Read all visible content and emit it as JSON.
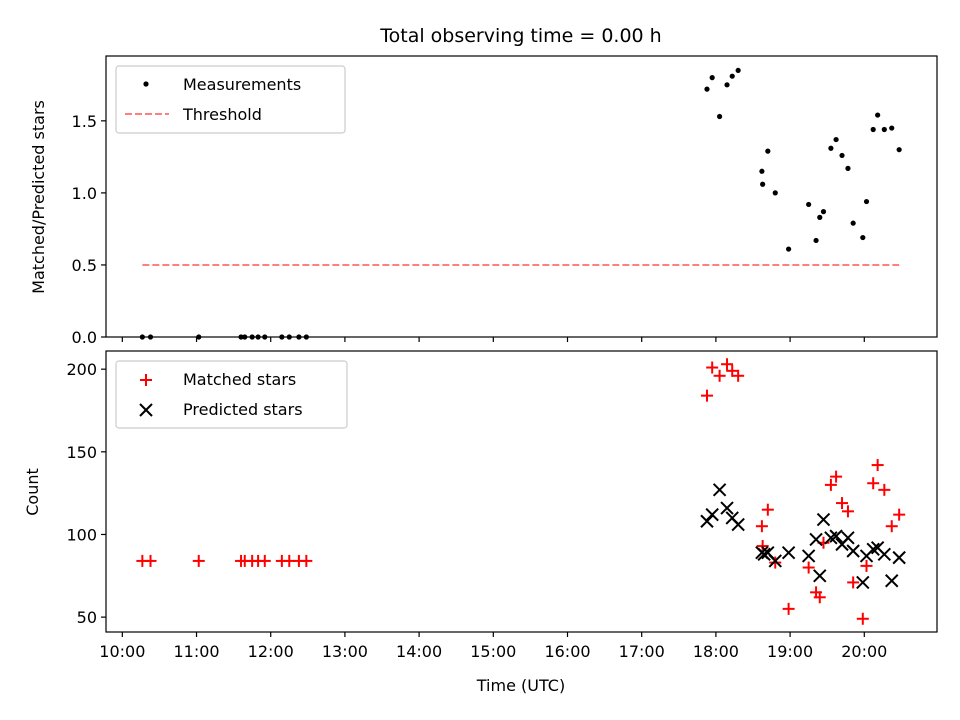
{
  "chart_data": {
    "title": "Total observing time = 0.00 h",
    "xlabel": "Time (UTC)",
    "x_ticks": [
      "10:00",
      "11:00",
      "12:00",
      "13:00",
      "14:00",
      "15:00",
      "16:00",
      "17:00",
      "18:00",
      "19:00",
      "20:00"
    ],
    "x_tick_hours": [
      10,
      11,
      12,
      13,
      14,
      15,
      16,
      17,
      18,
      19,
      20
    ],
    "xlim": [
      9.78,
      20.98
    ],
    "panels": [
      {
        "type": "scatter",
        "ylabel": "Matched/Predicted stars",
        "ylim": [
          0,
          1.95
        ],
        "y_ticks": [
          0.0,
          0.5,
          1.0,
          1.5
        ],
        "y_tick_labels": [
          "0.0",
          "0.5",
          "1.0",
          "1.5"
        ],
        "legend": {
          "placement": "upper-left",
          "entries": [
            "Measurements",
            "Threshold"
          ]
        },
        "series": [
          {
            "name": "Measurements",
            "marker": "dot",
            "color": "#000000",
            "x": [
              10.27,
              10.38,
              11.03,
              11.6,
              11.65,
              11.75,
              11.83,
              11.92,
              12.15,
              12.25,
              12.38,
              12.48,
              17.88,
              17.95,
              18.05,
              18.15,
              18.22,
              18.3,
              18.62,
              18.63,
              18.7,
              18.8,
              18.98,
              19.25,
              19.35,
              19.4,
              19.45,
              19.55,
              19.62,
              19.7,
              19.78,
              19.85,
              19.98,
              20.03,
              20.12,
              20.18,
              20.27,
              20.37,
              20.47
            ],
            "y": [
              0,
              0,
              0,
              0,
              0,
              0,
              0,
              0,
              0,
              0,
              0,
              0,
              1.72,
              1.8,
              1.53,
              1.75,
              1.81,
              1.85,
              1.15,
              1.06,
              1.29,
              1.0,
              0.61,
              0.92,
              0.67,
              0.83,
              0.87,
              1.31,
              1.37,
              1.26,
              1.17,
              0.79,
              0.69,
              0.94,
              1.44,
              1.54,
              1.44,
              1.45,
              1.3
            ]
          },
          {
            "name": "Threshold",
            "marker": "dashed-line",
            "color": "#ff7f7f",
            "x": [
              10.27,
              20.47
            ],
            "y": [
              0.5,
              0.5
            ]
          }
        ]
      },
      {
        "type": "scatter",
        "ylabel": "Count",
        "ylim": [
          41,
          211
        ],
        "y_ticks": [
          50,
          100,
          150,
          200
        ],
        "y_tick_labels": [
          "50",
          "100",
          "150",
          "200"
        ],
        "legend": {
          "placement": "upper-left",
          "entries": [
            "Matched stars",
            "Predicted stars"
          ]
        },
        "series": [
          {
            "name": "Matched stars",
            "marker": "plus",
            "color": "#ff0000",
            "x": [
              10.27,
              10.38,
              11.03,
              11.6,
              11.65,
              11.75,
              11.83,
              11.92,
              12.15,
              12.25,
              12.38,
              12.48,
              17.88,
              17.95,
              18.05,
              18.15,
              18.22,
              18.3,
              18.62,
              18.63,
              18.7,
              18.8,
              18.98,
              19.25,
              19.35,
              19.4,
              19.45,
              19.55,
              19.62,
              19.7,
              19.78,
              19.85,
              19.98,
              20.03,
              20.12,
              20.18,
              20.27,
              20.37,
              20.47
            ],
            "y": [
              84,
              84,
              84,
              84,
              84,
              84,
              84,
              84,
              84,
              84,
              84,
              84,
              184,
              201,
              196,
              203,
              199,
              196,
              105,
              93,
              115,
              83,
              55,
              80,
              65,
              62,
              95,
              130,
              135,
              119,
              114,
              71,
              49,
              81,
              131,
              142,
              127,
              105,
              112
            ]
          },
          {
            "name": "Predicted stars",
            "marker": "x",
            "color": "#000000",
            "x": [
              17.88,
              17.95,
              18.05,
              18.15,
              18.22,
              18.3,
              18.62,
              18.65,
              18.7,
              18.8,
              18.98,
              19.25,
              19.35,
              19.4,
              19.45,
              19.55,
              19.62,
              19.7,
              19.78,
              19.85,
              19.98,
              20.03,
              20.12,
              20.18,
              20.27,
              20.37,
              20.47
            ],
            "y": [
              108,
              112,
              127,
              116,
              110,
              106,
              89,
              88,
              89,
              84,
              89,
              87,
              97,
              75,
              109,
              98,
              99,
              94,
              98,
              90,
              71,
              87,
              91,
              92,
              88,
              72,
              86
            ]
          }
        ]
      }
    ]
  }
}
